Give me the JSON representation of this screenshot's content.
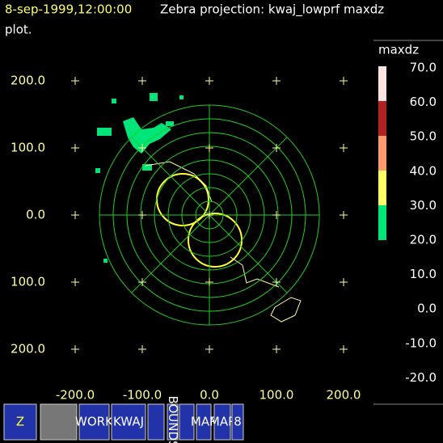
{
  "header": {
    "time": "8-sep-1999,12:00:00",
    "title": "Zebra projection: kwaj_lowprf maxdz",
    "title_cont": "plot."
  },
  "plot": {
    "y_labels": [
      "200.0",
      "100.0",
      "0.0",
      "100.0",
      "200.0"
    ],
    "x_labels": [
      "-200.0",
      "-100.0",
      "0.0",
      "100.0",
      "200.0"
    ]
  },
  "colorbar": {
    "field": "maxdz",
    "labels": [
      "70.0",
      "60.0",
      "50.0",
      "40.0",
      "30.0",
      "20.0",
      "10.0",
      "0.0",
      "-10.0",
      "-20.0"
    ],
    "colors": [
      "#ffe4e1",
      "#b22222",
      "#ff9a6e",
      "#ffff66",
      "#00e57a"
    ]
  },
  "toolbar": {
    "buttons": [
      {
        "label": "Z"
      },
      {
        "label": ""
      },
      {
        "label": "WORK"
      },
      {
        "label": "KWAJ"
      },
      {
        "label": ""
      },
      {
        "label": "BOUNDS"
      },
      {
        "label": ""
      },
      {
        "label": "MAP"
      },
      {
        "label": "MAP"
      },
      {
        "label": "8"
      }
    ]
  }
}
